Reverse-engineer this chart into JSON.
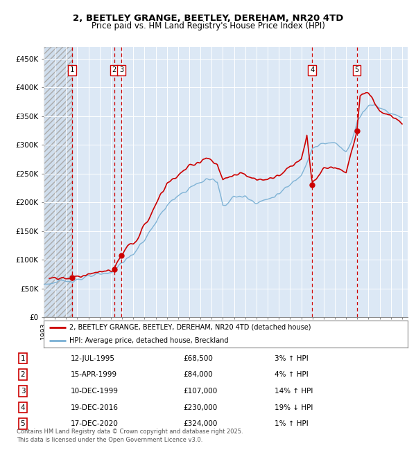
{
  "title_line1": "2, BEETLEY GRANGE, BEETLEY, DEREHAM, NR20 4TD",
  "title_line2": "Price paid vs. HM Land Registry's House Price Index (HPI)",
  "xlim_start": 1993.0,
  "xlim_end": 2025.5,
  "ylim_bottom": 0,
  "ylim_top": 470000,
  "yticks": [
    0,
    50000,
    100000,
    150000,
    200000,
    250000,
    300000,
    350000,
    400000,
    450000
  ],
  "ytick_labels": [
    "£0",
    "£50K",
    "£100K",
    "£150K",
    "£200K",
    "£250K",
    "£300K",
    "£350K",
    "£400K",
    "£450K"
  ],
  "sale_dates": [
    1995.53,
    1999.29,
    1999.94,
    2016.97,
    2020.96
  ],
  "sale_prices": [
    68500,
    84000,
    107000,
    230000,
    324000
  ],
  "sale_labels": [
    "1",
    "2",
    "3",
    "4",
    "5"
  ],
  "red_color": "#cc0000",
  "blue_color": "#7ab0d4",
  "legend_line1_label": "2, BEETLEY GRANGE, BEETLEY, DEREHAM, NR20 4TD (detached house)",
  "legend_line2_label": "HPI: Average price, detached house, Breckland",
  "table_entries": [
    [
      "1",
      "12-JUL-1995",
      "£68,500",
      "3% ↑ HPI"
    ],
    [
      "2",
      "15-APR-1999",
      "£84,000",
      "4% ↑ HPI"
    ],
    [
      "3",
      "10-DEC-1999",
      "£107,000",
      "14% ↑ HPI"
    ],
    [
      "4",
      "19-DEC-2016",
      "£230,000",
      "19% ↓ HPI"
    ],
    [
      "5",
      "17-DEC-2020",
      "£324,000",
      "1% ↑ HPI"
    ]
  ],
  "footer_text": "Contains HM Land Registry data © Crown copyright and database right 2025.\nThis data is licensed under the Open Government Licence v3.0.",
  "plot_bg_color": "#dce8f5",
  "grid_color": "#ffffff",
  "hatch_end": 1995.53
}
